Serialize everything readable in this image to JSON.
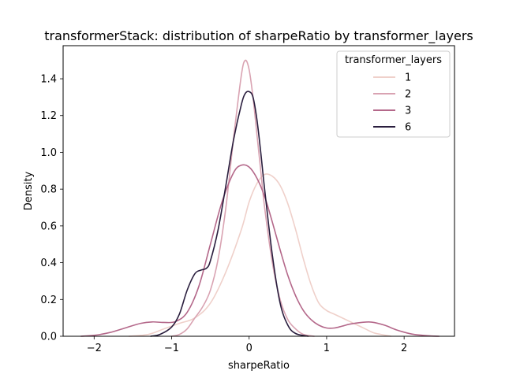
{
  "chart_data": {
    "type": "line",
    "title": "transformerStack: distribution of sharpeRatio by transformer_layers",
    "xlabel": "sharpeRatio",
    "ylabel": "Density",
    "xlim": [
      -2.4,
      2.65
    ],
    "ylim": [
      0,
      1.58
    ],
    "xticks": [
      -2,
      -1,
      0,
      1,
      2
    ],
    "yticks": [
      0.0,
      0.2,
      0.4,
      0.6,
      0.8,
      1.0,
      1.2,
      1.4
    ],
    "xtick_labels": [
      "−2",
      "−1",
      "0",
      "1",
      "2"
    ],
    "ytick_labels": [
      "0.0",
      "0.2",
      "0.4",
      "0.6",
      "0.8",
      "1.0",
      "1.2",
      "1.4"
    ],
    "grid": false,
    "legend": {
      "title": "transformer_layers",
      "placement": "top-right"
    },
    "series": [
      {
        "name": "1",
        "color": "#efd0ca",
        "x": [
          -1.55,
          -1.3,
          -1.1,
          -0.9,
          -0.7,
          -0.5,
          -0.3,
          -0.1,
          0.0,
          0.1,
          0.2,
          0.3,
          0.4,
          0.5,
          0.6,
          0.7,
          0.8,
          0.9,
          1.0,
          1.1,
          1.2,
          1.3,
          1.4,
          1.5,
          1.6,
          1.7,
          1.83
        ],
        "y": [
          0.0,
          0.01,
          0.04,
          0.07,
          0.1,
          0.18,
          0.35,
          0.58,
          0.73,
          0.83,
          0.88,
          0.87,
          0.82,
          0.72,
          0.58,
          0.42,
          0.28,
          0.18,
          0.14,
          0.12,
          0.1,
          0.08,
          0.06,
          0.04,
          0.02,
          0.01,
          0.0
        ]
      },
      {
        "name": "2",
        "color": "#d9a3b2",
        "x": [
          -1.0,
          -0.9,
          -0.8,
          -0.7,
          -0.6,
          -0.5,
          -0.4,
          -0.3,
          -0.2,
          -0.1,
          -0.05,
          0.0,
          0.05,
          0.1,
          0.15,
          0.2,
          0.3,
          0.4,
          0.5,
          0.6,
          0.7,
          0.84
        ],
        "y": [
          0.0,
          0.01,
          0.04,
          0.1,
          0.16,
          0.25,
          0.42,
          0.7,
          1.08,
          1.42,
          1.5,
          1.45,
          1.3,
          1.1,
          0.9,
          0.7,
          0.4,
          0.2,
          0.09,
          0.04,
          0.01,
          0.0
        ]
      },
      {
        "name": "3",
        "color": "#b4688a",
        "x": [
          -2.17,
          -2.0,
          -1.8,
          -1.6,
          -1.4,
          -1.25,
          -1.1,
          -0.95,
          -0.8,
          -0.65,
          -0.5,
          -0.35,
          -0.2,
          -0.1,
          0.0,
          0.1,
          0.2,
          0.3,
          0.4,
          0.5,
          0.6,
          0.7,
          0.8,
          0.9,
          1.0,
          1.1,
          1.2,
          1.3,
          1.45,
          1.58,
          1.75,
          1.9,
          2.1,
          2.3,
          2.45
        ],
        "y": [
          0.0,
          0.005,
          0.02,
          0.045,
          0.07,
          0.078,
          0.075,
          0.08,
          0.13,
          0.27,
          0.5,
          0.73,
          0.89,
          0.93,
          0.92,
          0.86,
          0.76,
          0.62,
          0.47,
          0.33,
          0.22,
          0.14,
          0.09,
          0.06,
          0.045,
          0.045,
          0.055,
          0.066,
          0.075,
          0.077,
          0.06,
          0.035,
          0.012,
          0.003,
          0.0
        ]
      },
      {
        "name": "6",
        "color": "#2a1e3e",
        "x": [
          -1.27,
          -1.15,
          -1.0,
          -0.9,
          -0.8,
          -0.7,
          -0.62,
          -0.55,
          -0.5,
          -0.4,
          -0.3,
          -0.2,
          -0.1,
          -0.05,
          0.0,
          0.05,
          0.1,
          0.15,
          0.2,
          0.3,
          0.4,
          0.5,
          0.6,
          0.76
        ],
        "y": [
          0.0,
          0.01,
          0.05,
          0.12,
          0.25,
          0.34,
          0.36,
          0.37,
          0.41,
          0.58,
          0.82,
          1.07,
          1.26,
          1.32,
          1.33,
          1.3,
          1.18,
          1.0,
          0.8,
          0.44,
          0.18,
          0.06,
          0.015,
          0.0
        ]
      }
    ]
  }
}
